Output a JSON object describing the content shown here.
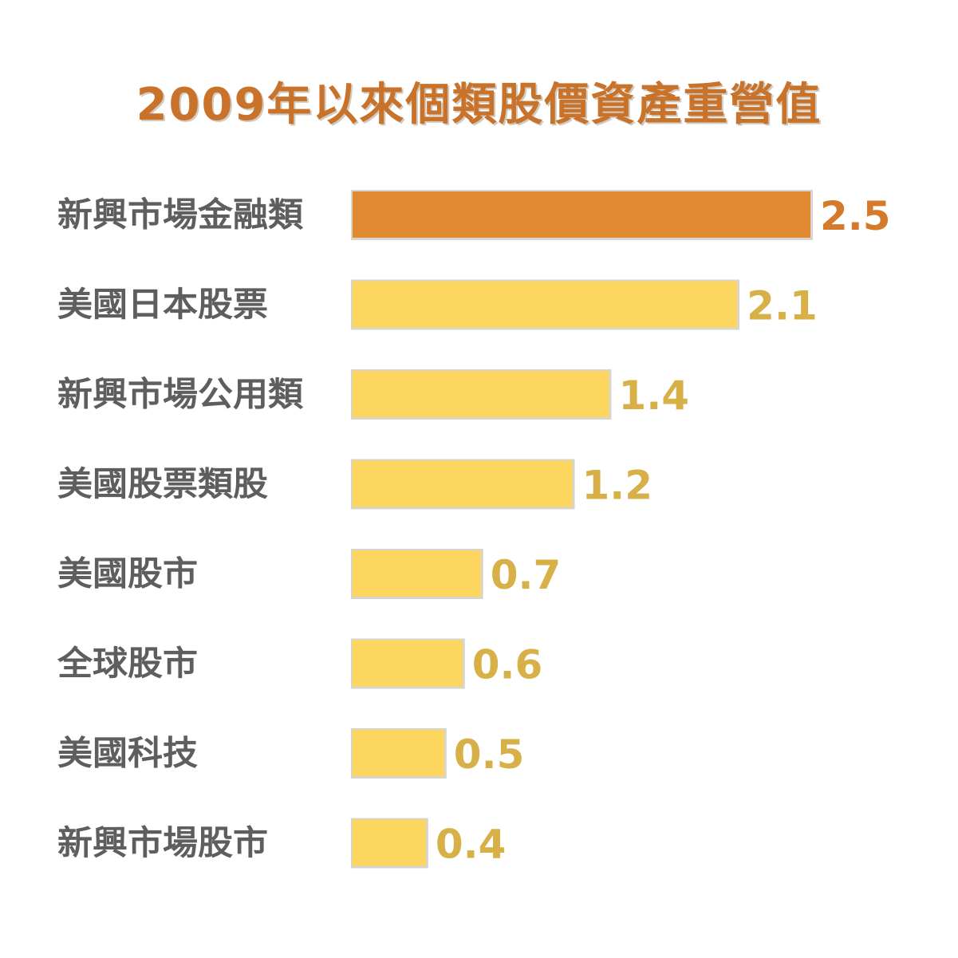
{
  "colors": {
    "title": "#c8722a",
    "highlight_bar": "#e08a32",
    "highlight_value": "#d57a2a",
    "bar": "#fdd660",
    "value": "#d8b048",
    "category_text": "#5e5e5e",
    "bar_shadow": "#d9d4cc"
  },
  "chart_data": {
    "type": "bar",
    "orientation": "horizontal",
    "title": "2009年以來個類股價資產重營值",
    "categories": [
      "新興市場金融類",
      "美國日本股票",
      "新興市場公用類",
      "美國股票類股",
      "美國股市",
      "全球股市",
      "美國科技",
      "新興市場股市"
    ],
    "values": [
      2.5,
      2.1,
      1.4,
      1.2,
      0.7,
      0.6,
      0.5,
      0.4
    ],
    "value_labels": [
      "2.5",
      "2.1",
      "1.4",
      "1.2",
      "0.7",
      "0.6",
      "0.5",
      "0.4"
    ],
    "highlight_index": 0,
    "xlim": [
      0,
      2.5
    ],
    "grid": false,
    "legend": "none"
  }
}
